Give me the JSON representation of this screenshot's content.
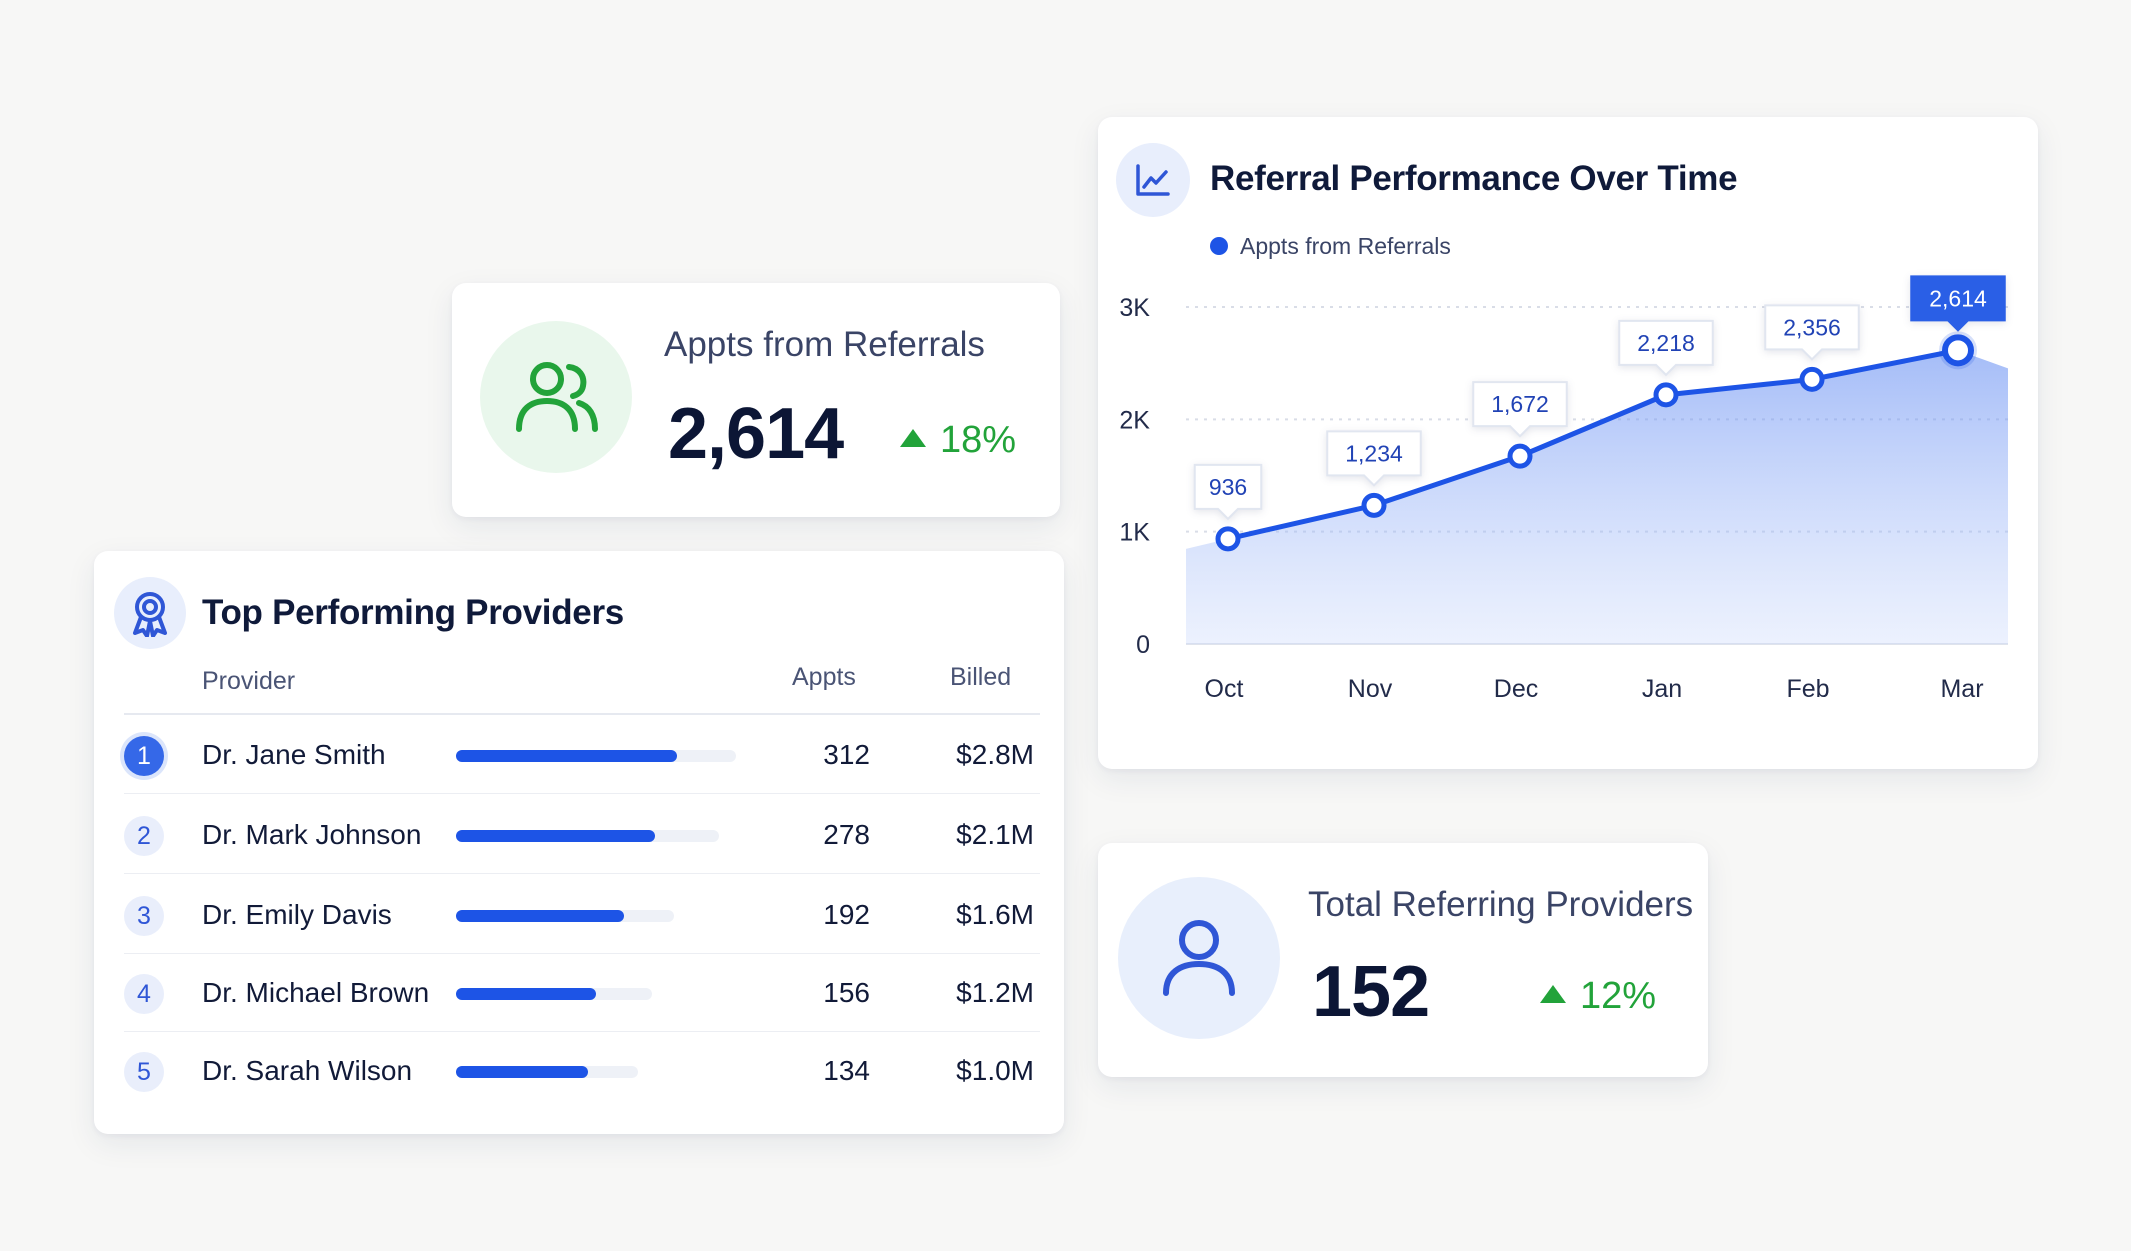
{
  "kpi_appts": {
    "label": "Appts from Referrals",
    "value": "2,614",
    "change": "18%",
    "icon": "users-icon",
    "accent": "#22a33a"
  },
  "kpi_providers": {
    "label": "Total Referring Providers",
    "value": "152",
    "change": "12%",
    "icon": "user-icon",
    "accent": "#22a33a"
  },
  "providers_table": {
    "title": "Top Performing Providers",
    "icon": "award-ribbon-icon",
    "headers": {
      "provider": "Provider",
      "appts": "Appts",
      "billed": "Billed"
    },
    "rows": [
      {
        "rank": "1",
        "name": "Dr. Jane Smith",
        "appts": "312",
        "billed": "$2.8M",
        "bar_fraction": 0.79,
        "track_fraction": 1.0
      },
      {
        "rank": "2",
        "name": "Dr. Mark Johnson",
        "appts": "278",
        "billed": "$2.1M",
        "bar_fraction": 0.71,
        "track_fraction": 0.94
      },
      {
        "rank": "3",
        "name": "Dr. Emily Davis",
        "appts": "192",
        "billed": "$1.6M",
        "bar_fraction": 0.6,
        "track_fraction": 0.78
      },
      {
        "rank": "4",
        "name": "Dr. Michael Brown",
        "appts": "156",
        "billed": "$1.2M",
        "bar_fraction": 0.5,
        "track_fraction": 0.7
      },
      {
        "rank": "5",
        "name": "Dr. Sarah Wilson",
        "appts": "134",
        "billed": "$1.0M",
        "bar_fraction": 0.47,
        "track_fraction": 0.65
      }
    ],
    "bar_color": "#1d54e6"
  },
  "chart": {
    "title": "Referral Performance Over Time",
    "icon": "line-chart-icon",
    "legend": "Appts from Referrals"
  },
  "chart_data": {
    "type": "area",
    "title": "Referral Performance Over Time",
    "categories": [
      "Oct",
      "Nov",
      "Dec",
      "Jan",
      "Feb",
      "Mar"
    ],
    "series": [
      {
        "name": "Appts from Referrals",
        "values": [
          936,
          1234,
          1672,
          2218,
          2356,
          2614
        ],
        "labels": [
          "936",
          "1,234",
          "1,672",
          "2,218",
          "2,356",
          "2,614"
        ],
        "color": "#1d54e6"
      }
    ],
    "y_ticks": [
      "0",
      "1K",
      "2K",
      "3K"
    ],
    "y_tick_values": [
      0,
      1000,
      2000,
      3000
    ],
    "highlight_index": 5,
    "grid": true,
    "legend_position": "top-left"
  }
}
